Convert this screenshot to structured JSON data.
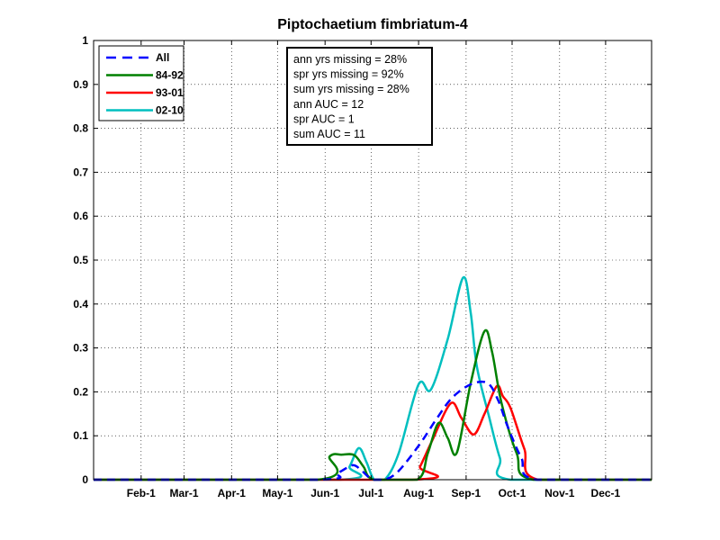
{
  "chart_data": {
    "type": "line",
    "title": "Piptochaetium fimbriatum-4",
    "xlabel": "",
    "ylabel": "",
    "xlim": [
      1,
      365
    ],
    "ylim": [
      0,
      1
    ],
    "grid": true,
    "x_ticks": [
      {
        "label": "Feb-1",
        "day": 32
      },
      {
        "label": "Mar-1",
        "day": 60
      },
      {
        "label": "Apr-1",
        "day": 91
      },
      {
        "label": "May-1",
        "day": 121
      },
      {
        "label": "Jun-1",
        "day": 152
      },
      {
        "label": "Jul-1",
        "day": 182
      },
      {
        "label": "Aug-1",
        "day": 213
      },
      {
        "label": "Sep-1",
        "day": 244
      },
      {
        "label": "Oct-1",
        "day": 274
      },
      {
        "label": "Nov-1",
        "day": 305
      },
      {
        "label": "Dec-1",
        "day": 335
      }
    ],
    "y_ticks": [
      "0",
      "0.1",
      "0.2",
      "0.3",
      "0.4",
      "0.5",
      "0.6",
      "0.7",
      "0.8",
      "0.9",
      "1"
    ],
    "legend_position": "top-left",
    "series": [
      {
        "name": "All",
        "color": "#0000ff",
        "dash": true,
        "points": [
          [
            1,
            0
          ],
          [
            147,
            0
          ],
          [
            160,
            0.015
          ],
          [
            170,
            0.033
          ],
          [
            176,
            0.02
          ],
          [
            183,
            0
          ],
          [
            191,
            0
          ],
          [
            200,
            0.02
          ],
          [
            214,
            0.082
          ],
          [
            225,
            0.14
          ],
          [
            235,
            0.187
          ],
          [
            247,
            0.217
          ],
          [
            258,
            0.22
          ],
          [
            265,
            0.18
          ],
          [
            271,
            0.122
          ],
          [
            280,
            0.05
          ],
          [
            290,
            0
          ],
          [
            365,
            0
          ]
        ]
      },
      {
        "name": "84-92",
        "color": "#008000",
        "dash": false,
        "points": [
          [
            1,
            0
          ],
          [
            147,
            0
          ],
          [
            155,
            0.053
          ],
          [
            163,
            0.057
          ],
          [
            171,
            0.056
          ],
          [
            177,
            0.03
          ],
          [
            184,
            0
          ],
          [
            212,
            0
          ],
          [
            219,
            0.06
          ],
          [
            226,
            0.129
          ],
          [
            232,
            0.095
          ],
          [
            238,
            0.062
          ],
          [
            247,
            0.22
          ],
          [
            256,
            0.338
          ],
          [
            261,
            0.29
          ],
          [
            267,
            0.176
          ],
          [
            277,
            0.06
          ],
          [
            288,
            0
          ],
          [
            365,
            0
          ]
        ]
      },
      {
        "name": "93-01",
        "color": "#ff0000",
        "dash": false,
        "points": [
          [
            1,
            0
          ],
          [
            209,
            0
          ],
          [
            214,
            0.03
          ],
          [
            222,
            0.09
          ],
          [
            234,
            0.174
          ],
          [
            241,
            0.14
          ],
          [
            249,
            0.103
          ],
          [
            256,
            0.15
          ],
          [
            264,
            0.213
          ],
          [
            268,
            0.19
          ],
          [
            273,
            0.163
          ],
          [
            282,
            0.07
          ],
          [
            291,
            0
          ],
          [
            365,
            0
          ]
        ]
      },
      {
        "name": "02-10",
        "color": "#00bfbf",
        "dash": false,
        "points": [
          [
            1,
            0
          ],
          [
            162,
            0
          ],
          [
            168,
            0.03
          ],
          [
            174,
            0.072
          ],
          [
            179,
            0.04
          ],
          [
            184,
            0
          ],
          [
            191,
            0
          ],
          [
            200,
            0.06
          ],
          [
            213,
            0.217
          ],
          [
            221,
            0.205
          ],
          [
            232,
            0.32
          ],
          [
            242,
            0.46
          ],
          [
            247,
            0.38
          ],
          [
            251,
            0.258
          ],
          [
            259,
            0.143
          ],
          [
            266,
            0.05
          ],
          [
            273,
            0
          ],
          [
            365,
            0
          ]
        ]
      }
    ],
    "annotation": [
      "ann yrs missing = 28%",
      "spr yrs missing = 92%",
      "sum yrs missing = 28%",
      "ann AUC = 12",
      "spr AUC = 1",
      "sum AUC = 11"
    ]
  }
}
